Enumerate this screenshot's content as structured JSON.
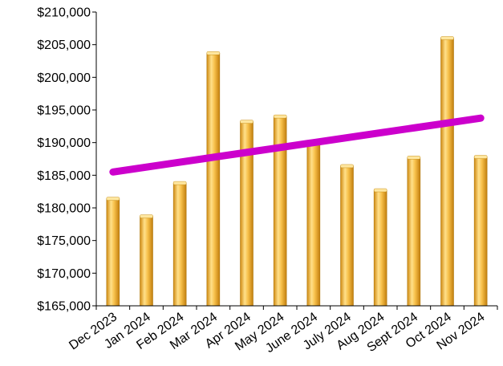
{
  "chart_data": {
    "type": "bar",
    "title": "",
    "xlabel": "",
    "ylabel": "",
    "categories": [
      "Dec 2023",
      "Jan 2024",
      "Feb 2024",
      "Mar 2024",
      "Apr 2024",
      "May 2024",
      "June 2024",
      "July 2024",
      "Aug 2024",
      "Sept 2024",
      "Oct 2024",
      "Nov 2024"
    ],
    "series": [
      {
        "type": "bar",
        "color": "#F2B33A",
        "values": [
          181400,
          178700,
          183800,
          203700,
          193200,
          194000,
          190100,
          186400,
          182700,
          187700,
          206000,
          187800
        ]
      },
      {
        "type": "trendline",
        "color": "#CC00CC",
        "values": [
          185500,
          186250,
          187000,
          187750,
          188500,
          189250,
          190000,
          190750,
          191500,
          192250,
          193000,
          193750
        ]
      }
    ],
    "ylim": [
      165000,
      210000
    ],
    "yticks": [
      165000,
      170000,
      175000,
      180000,
      185000,
      190000,
      195000,
      200000,
      205000,
      210000
    ],
    "ytick_labels": [
      "$165,000",
      "$170,000",
      "$175,000",
      "$180,000",
      "$185,000",
      "$190,000",
      "$195,000",
      "$200,000",
      "$205,000",
      "$210,000"
    ],
    "grid": false,
    "legend": "none"
  }
}
